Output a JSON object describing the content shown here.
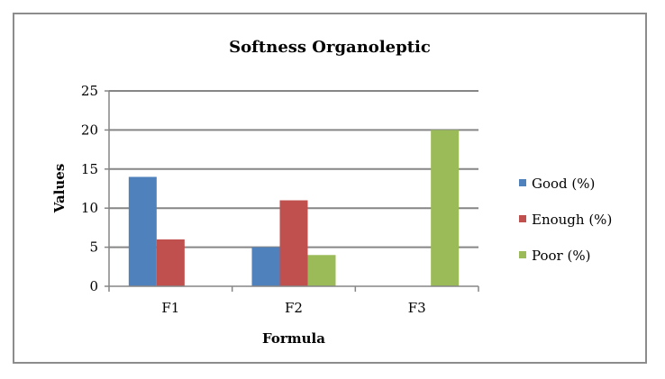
{
  "chart_data": {
    "type": "bar",
    "title": "Softness Organoleptic",
    "xlabel": "Formula",
    "ylabel": "Values",
    "categories": [
      "F1",
      "F2",
      "F3"
    ],
    "yticks": [
      "0",
      "5",
      "10",
      "15",
      "20",
      "25"
    ],
    "ylim": [
      0,
      25
    ],
    "grid": true,
    "legend_position": "right",
    "series": [
      {
        "name": "Good (%)",
        "color": "#4f81bd",
        "values": [
          14,
          5,
          0
        ]
      },
      {
        "name": "Enough (%)",
        "color": "#c0504d",
        "values": [
          6,
          11,
          0
        ]
      },
      {
        "name": "Poor (%)",
        "color": "#9bbb59",
        "values": [
          0,
          4,
          20
        ]
      }
    ]
  }
}
